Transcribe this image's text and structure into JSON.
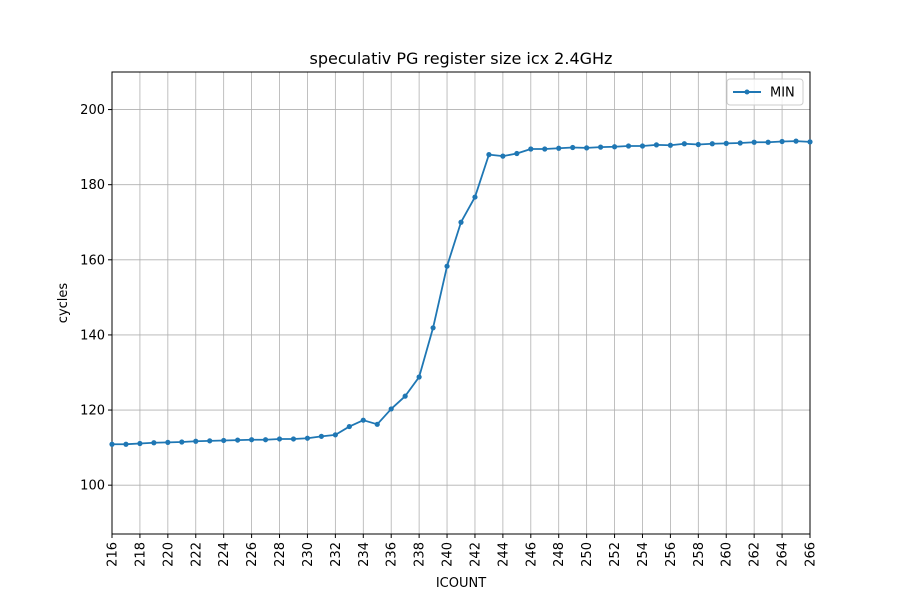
{
  "chart_data": {
    "type": "line",
    "title": "speculativ PG register size icx 2.4GHz",
    "xlabel": "ICOUNT",
    "ylabel": "cycles",
    "xlim": [
      216,
      266
    ],
    "ylim": [
      87,
      210
    ],
    "x_ticks": [
      216,
      218,
      220,
      222,
      224,
      226,
      228,
      230,
      232,
      234,
      236,
      238,
      240,
      242,
      244,
      246,
      248,
      250,
      252,
      254,
      256,
      258,
      260,
      262,
      264,
      266
    ],
    "y_ticks": [
      100,
      120,
      140,
      160,
      180,
      200
    ],
    "grid": true,
    "legend_position": "top-right",
    "color": "#1f77b4",
    "series": [
      {
        "name": "MIN",
        "x": [
          216,
          217,
          218,
          219,
          220,
          221,
          222,
          223,
          224,
          225,
          226,
          227,
          228,
          229,
          230,
          231,
          232,
          233,
          234,
          235,
          236,
          237,
          238,
          239,
          240,
          241,
          242,
          243,
          244,
          245,
          246,
          247,
          248,
          249,
          250,
          251,
          252,
          253,
          254,
          255,
          256,
          257,
          258,
          259,
          260,
          261,
          262,
          263,
          264,
          265,
          266
        ],
        "values": [
          110.9,
          110.9,
          111.1,
          111.3,
          111.4,
          111.5,
          111.7,
          111.8,
          111.9,
          112.0,
          112.1,
          112.1,
          112.3,
          112.3,
          112.5,
          113.0,
          113.4,
          115.6,
          117.3,
          116.2,
          120.3,
          123.7,
          128.8,
          141.9,
          158.3,
          170.0,
          176.7,
          188.0,
          187.6,
          188.3,
          189.5,
          189.5,
          189.7,
          189.9,
          189.8,
          190.0,
          190.1,
          190.3,
          190.3,
          190.6,
          190.5,
          190.9,
          190.7,
          190.9,
          191.0,
          191.1,
          191.3,
          191.3,
          191.5,
          191.6,
          191.4
        ]
      }
    ]
  }
}
